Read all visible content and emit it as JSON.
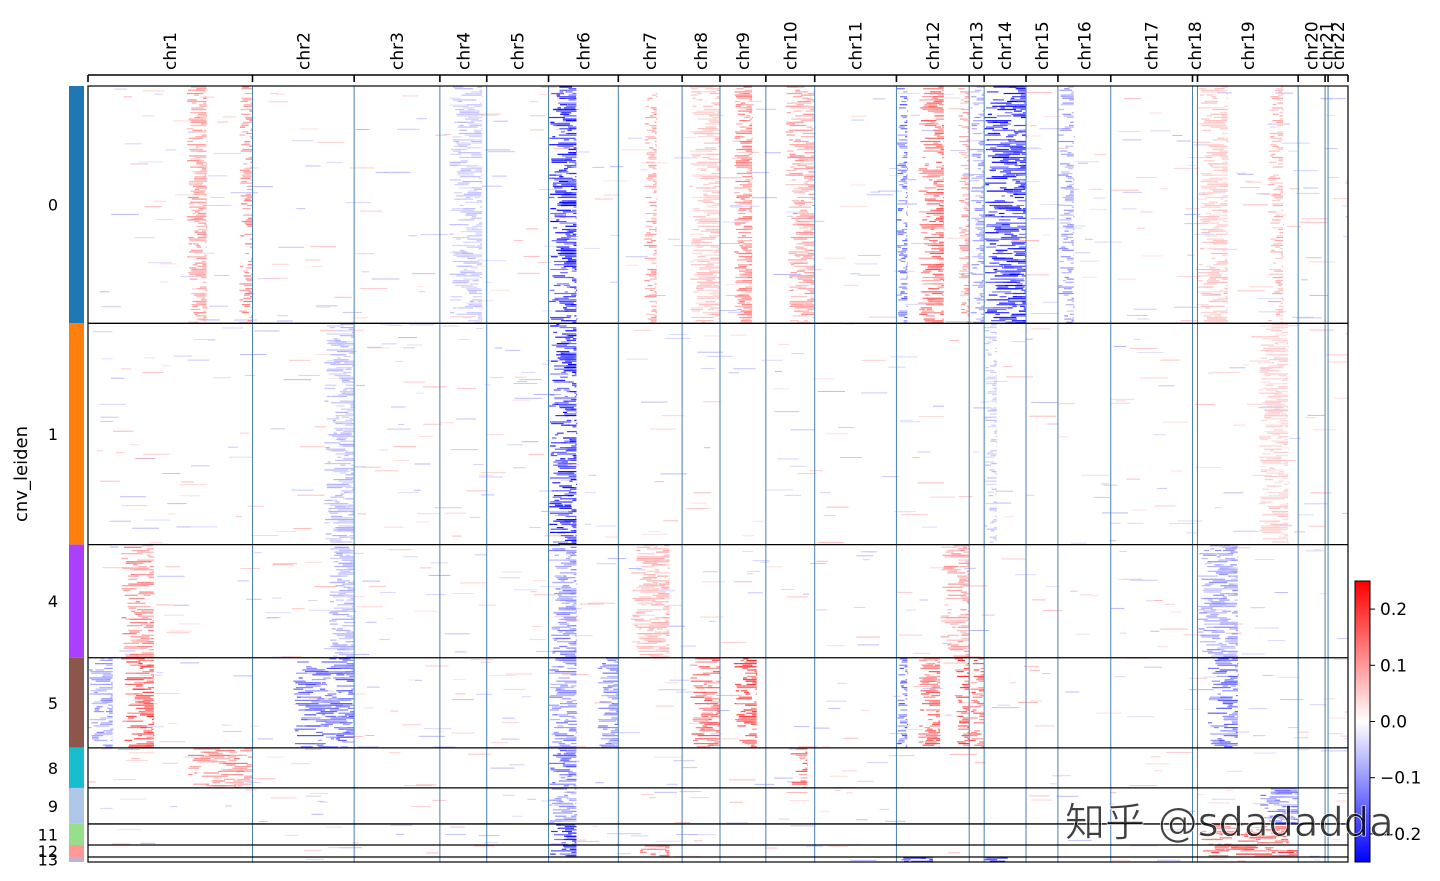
{
  "chart_data": {
    "type": "heatmap",
    "title": "",
    "ylabel": "cnv_leiden",
    "xlabel": "",
    "chromosomes": [
      {
        "name": "chr1",
        "span": 165
      },
      {
        "name": "chr2",
        "span": 102
      },
      {
        "name": "chr3",
        "span": 86
      },
      {
        "name": "chr4",
        "span": 47
      },
      {
        "name": "chr5",
        "span": 62
      },
      {
        "name": "chr6",
        "span": 70
      },
      {
        "name": "chr7",
        "span": 64
      },
      {
        "name": "chr8",
        "span": 38
      },
      {
        "name": "chr9",
        "span": 46
      },
      {
        "name": "chr10",
        "span": 49
      },
      {
        "name": "chr11",
        "span": 82
      },
      {
        "name": "chr12",
        "span": 73
      },
      {
        "name": "chr13",
        "span": 15
      },
      {
        "name": "chr14",
        "span": 42
      },
      {
        "name": "chr15",
        "span": 32
      },
      {
        "name": "chr16",
        "span": 53
      },
      {
        "name": "chr17",
        "span": 82
      },
      {
        "name": "chr18",
        "span": 5
      },
      {
        "name": "chr19",
        "span": 101
      },
      {
        "name": "chr20",
        "span": 27
      },
      {
        "name": "chr21",
        "span": 3
      },
      {
        "name": "chr22",
        "span": 20
      }
    ],
    "clusters": [
      {
        "label": "0",
        "cells": 237,
        "color": "#1f77b4"
      },
      {
        "label": "1",
        "cells": 221,
        "color": "#ff7f0e"
      },
      {
        "label": "4",
        "cells": 113,
        "color": "#aa40fc"
      },
      {
        "label": "5",
        "cells": 90,
        "color": "#8c564b"
      },
      {
        "label": "8",
        "cells": 40,
        "color": "#17becf"
      },
      {
        "label": "9",
        "cells": 36,
        "color": "#aec7e8"
      },
      {
        "label": "11",
        "cells": 21,
        "color": "#98df8a"
      },
      {
        "label": "12",
        "cells": 12,
        "color": "#ff9896"
      },
      {
        "label": "13",
        "cells": 5,
        "color": "#c5b0d5"
      }
    ],
    "signals": [
      {
        "cluster": "0",
        "chrom": "chr1",
        "from": 0.6,
        "to": 0.72,
        "value": 0.1
      },
      {
        "cluster": "0",
        "chrom": "chr1",
        "from": 0.92,
        "to": 1.0,
        "value": 0.12
      },
      {
        "cluster": "0",
        "chrom": "chr4",
        "from": 0.2,
        "to": 0.9,
        "value": -0.06
      },
      {
        "cluster": "0",
        "chrom": "chr6",
        "from": 0.0,
        "to": 0.4,
        "value": -0.22
      },
      {
        "cluster": "0",
        "chrom": "chr7",
        "from": 0.4,
        "to": 0.6,
        "value": 0.1
      },
      {
        "cluster": "0",
        "chrom": "chr8",
        "from": 0.2,
        "to": 1.0,
        "value": 0.06
      },
      {
        "cluster": "0",
        "chrom": "chr9",
        "from": 0.3,
        "to": 0.7,
        "value": 0.12
      },
      {
        "cluster": "0",
        "chrom": "chr10",
        "from": 0.4,
        "to": 1.0,
        "value": 0.1
      },
      {
        "cluster": "0",
        "chrom": "chr12",
        "from": 0.0,
        "to": 0.15,
        "value": -0.15
      },
      {
        "cluster": "0",
        "chrom": "chr12",
        "from": 0.3,
        "to": 0.65,
        "value": 0.15
      },
      {
        "cluster": "0",
        "chrom": "chr12",
        "from": 0.85,
        "to": 1.0,
        "value": 0.1
      },
      {
        "cluster": "0",
        "chrom": "chr13",
        "from": 0.0,
        "to": 1.0,
        "value": -0.1
      },
      {
        "cluster": "0",
        "chrom": "chr14",
        "from": 0.0,
        "to": 1.0,
        "value": -0.22
      },
      {
        "cluster": "0",
        "chrom": "chr16",
        "from": 0.0,
        "to": 0.3,
        "value": -0.1
      },
      {
        "cluster": "0",
        "chrom": "chr19",
        "from": 0.0,
        "to": 0.3,
        "value": 0.06
      },
      {
        "cluster": "0",
        "chrom": "chr19",
        "from": 0.7,
        "to": 0.85,
        "value": 0.08
      },
      {
        "cluster": "1",
        "chrom": "chr2",
        "from": 0.7,
        "to": 1.0,
        "value": -0.07
      },
      {
        "cluster": "1",
        "chrom": "chr6",
        "from": 0.0,
        "to": 0.4,
        "value": -0.22
      },
      {
        "cluster": "1",
        "chrom": "chr14",
        "from": 0.0,
        "to": 0.3,
        "value": -0.06
      },
      {
        "cluster": "1",
        "chrom": "chr19",
        "from": 0.6,
        "to": 0.9,
        "value": 0.05
      },
      {
        "cluster": "4",
        "chrom": "chr1",
        "from": 0.2,
        "to": 0.4,
        "value": 0.12
      },
      {
        "cluster": "4",
        "chrom": "chr2",
        "from": 0.75,
        "to": 1.0,
        "value": -0.08
      },
      {
        "cluster": "4",
        "chrom": "chr6",
        "from": 0.0,
        "to": 0.4,
        "value": -0.12
      },
      {
        "cluster": "4",
        "chrom": "chr7",
        "from": 0.2,
        "to": 0.8,
        "value": 0.08
      },
      {
        "cluster": "4",
        "chrom": "chr12",
        "from": 0.6,
        "to": 1.0,
        "value": 0.1
      },
      {
        "cluster": "4",
        "chrom": "chr19",
        "from": 0.0,
        "to": 0.4,
        "value": -0.1
      },
      {
        "cluster": "5",
        "chrom": "chr1",
        "from": 0.0,
        "to": 0.15,
        "value": -0.1
      },
      {
        "cluster": "5",
        "chrom": "chr1",
        "from": 0.2,
        "to": 0.4,
        "value": 0.18
      },
      {
        "cluster": "5",
        "chrom": "chr2",
        "from": 0.4,
        "to": 1.0,
        "value": -0.15
      },
      {
        "cluster": "5",
        "chrom": "chr6",
        "from": 0.0,
        "to": 0.4,
        "value": -0.12
      },
      {
        "cluster": "5",
        "chrom": "chr6",
        "from": 0.7,
        "to": 1.0,
        "value": -0.12
      },
      {
        "cluster": "5",
        "chrom": "chr8",
        "from": 0.2,
        "to": 1.0,
        "value": 0.15
      },
      {
        "cluster": "5",
        "chrom": "chr9",
        "from": 0.3,
        "to": 0.8,
        "value": 0.18
      },
      {
        "cluster": "5",
        "chrom": "chr12",
        "from": 0.0,
        "to": 0.15,
        "value": -0.15
      },
      {
        "cluster": "5",
        "chrom": "chr12",
        "from": 0.3,
        "to": 0.6,
        "value": 0.15
      },
      {
        "cluster": "5",
        "chrom": "chr12",
        "from": 0.8,
        "to": 1.0,
        "value": 0.18
      },
      {
        "cluster": "5",
        "chrom": "chr13",
        "from": 0.0,
        "to": 1.0,
        "value": 0.15
      },
      {
        "cluster": "5",
        "chrom": "chr19",
        "from": 0.1,
        "to": 0.4,
        "value": -0.15
      },
      {
        "cluster": "8",
        "chrom": "chr1",
        "from": 0.6,
        "to": 1.0,
        "value": 0.12
      },
      {
        "cluster": "8",
        "chrom": "chr6",
        "from": 0.0,
        "to": 0.4,
        "value": -0.15
      },
      {
        "cluster": "8",
        "chrom": "chr10",
        "from": 0.5,
        "to": 0.85,
        "value": 0.15
      },
      {
        "cluster": "9",
        "chrom": "chr6",
        "from": 0.0,
        "to": 0.4,
        "value": -0.1
      },
      {
        "cluster": "9",
        "chrom": "chr19",
        "from": 0.6,
        "to": 1.0,
        "value": -0.12
      },
      {
        "cluster": "11",
        "chrom": "chr6",
        "from": 0.0,
        "to": 0.4,
        "value": -0.2
      },
      {
        "cluster": "11",
        "chrom": "chr19",
        "from": 0.0,
        "to": 0.9,
        "value": 0.15
      },
      {
        "cluster": "12",
        "chrom": "chr6",
        "from": 0.0,
        "to": 0.4,
        "value": -0.2
      },
      {
        "cluster": "12",
        "chrom": "chr7",
        "from": 0.3,
        "to": 0.8,
        "value": 0.15
      },
      {
        "cluster": "12",
        "chrom": "chr19",
        "from": 0.0,
        "to": 1.0,
        "value": 0.18
      },
      {
        "cluster": "13",
        "chrom": "chr12",
        "from": 0.0,
        "to": 0.5,
        "value": -0.2
      },
      {
        "cluster": "13",
        "chrom": "chr14",
        "from": 0.0,
        "to": 0.6,
        "value": -0.2
      }
    ],
    "colorbar": {
      "colormap": "bwr",
      "vmin": -0.25,
      "vmax": 0.25,
      "ticks": [
        0.2,
        0.1,
        0.0,
        -0.1,
        -0.2
      ],
      "tick_labels": [
        "0.2",
        "0.1",
        "0.0",
        "−0.1",
        "−0.2"
      ],
      "min_color": "#0000ff",
      "mid_color": "#ffffff",
      "max_color": "#ff0000"
    },
    "grid_line_color": "#4a7fb5"
  },
  "watermark": {
    "text": "知乎 @sdadadda"
  }
}
